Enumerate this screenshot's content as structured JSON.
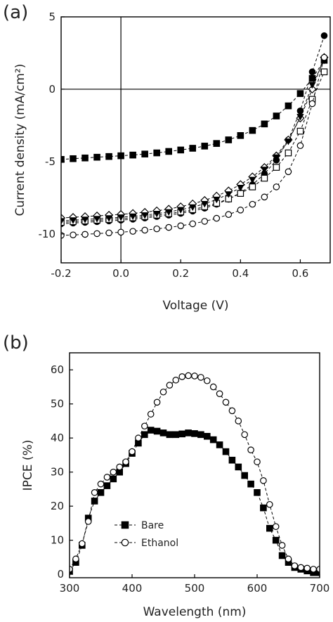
{
  "chart_data": [
    {
      "type": "line",
      "panel_label": "(a)",
      "xlabel": "Voltage (V)",
      "ylabel": "Current density (mA/cm²)",
      "xlim": [
        -0.2,
        0.7
      ],
      "ylim": [
        -12,
        5
      ],
      "xticks": [
        {
          "value": -0.2,
          "label": "-0.2"
        },
        {
          "value": 0.0,
          "label": "0.0"
        },
        {
          "value": 0.2,
          "label": "0.2"
        },
        {
          "value": 0.4,
          "label": "0.4"
        },
        {
          "value": 0.6,
          "label": "0.6"
        }
      ],
      "yticks": [
        {
          "value": 5,
          "label": "5"
        },
        {
          "value": 0,
          "label": "0"
        },
        {
          "value": -5,
          "label": "-5"
        },
        {
          "value": -10,
          "label": "-10"
        }
      ],
      "reference_lines": {
        "x": 0,
        "y": 0
      },
      "series": [
        {
          "marker": "filled-square",
          "x": [
            -0.2,
            -0.16,
            -0.12,
            -0.08,
            -0.04,
            0.0,
            0.04,
            0.08,
            0.12,
            0.16,
            0.2,
            0.24,
            0.28,
            0.32,
            0.36,
            0.4,
            0.44,
            0.48,
            0.52,
            0.56,
            0.6,
            0.64,
            0.68
          ],
          "y": [
            -4.85,
            -4.8,
            -4.75,
            -4.7,
            -4.65,
            -4.6,
            -4.55,
            -4.48,
            -4.4,
            -4.3,
            -4.2,
            -4.08,
            -3.93,
            -3.75,
            -3.5,
            -3.2,
            -2.85,
            -2.4,
            -1.85,
            -1.15,
            -0.3,
            0.75,
            2.0
          ]
        },
        {
          "marker": "filled-circle",
          "x": [
            -0.2,
            -0.16,
            -0.12,
            -0.08,
            -0.04,
            0.0,
            0.04,
            0.08,
            0.12,
            0.16,
            0.2,
            0.24,
            0.28,
            0.32,
            0.36,
            0.4,
            0.44,
            0.48,
            0.52,
            0.56,
            0.6,
            0.64,
            0.68
          ],
          "y": [
            -9.3,
            -9.25,
            -9.2,
            -9.15,
            -9.1,
            -9.05,
            -8.98,
            -8.9,
            -8.8,
            -8.7,
            -8.58,
            -8.42,
            -8.22,
            -7.95,
            -7.6,
            -7.15,
            -6.6,
            -5.85,
            -4.9,
            -3.5,
            -1.5,
            1.2,
            3.7
          ]
        },
        {
          "marker": "open-diamond",
          "x": [
            -0.2,
            -0.16,
            -0.12,
            -0.08,
            -0.04,
            0.0,
            0.04,
            0.08,
            0.12,
            0.16,
            0.2,
            0.24,
            0.28,
            0.32,
            0.36,
            0.4,
            0.44,
            0.48,
            0.52,
            0.56,
            0.6,
            0.64,
            0.68
          ],
          "y": [
            -8.9,
            -8.85,
            -8.8,
            -8.75,
            -8.7,
            -8.65,
            -8.58,
            -8.5,
            -8.4,
            -8.28,
            -8.12,
            -7.92,
            -7.68,
            -7.38,
            -7.02,
            -6.58,
            -6.05,
            -5.4,
            -4.6,
            -3.5,
            -2.0,
            0.0,
            2.2
          ]
        },
        {
          "marker": "open-square",
          "x": [
            -0.2,
            -0.16,
            -0.12,
            -0.08,
            -0.04,
            0.0,
            0.04,
            0.08,
            0.12,
            0.16,
            0.2,
            0.24,
            0.28,
            0.32,
            0.36,
            0.4,
            0.44,
            0.48,
            0.52,
            0.56,
            0.6,
            0.64,
            0.68
          ],
          "y": [
            -9.2,
            -9.15,
            -9.1,
            -9.05,
            -9.0,
            -8.95,
            -8.88,
            -8.8,
            -8.7,
            -8.6,
            -8.48,
            -8.32,
            -8.12,
            -7.88,
            -7.58,
            -7.2,
            -6.75,
            -6.15,
            -5.4,
            -4.4,
            -2.9,
            -0.7,
            1.2
          ]
        },
        {
          "marker": "filled-triangle-down",
          "x": [
            -0.2,
            -0.16,
            -0.12,
            -0.08,
            -0.04,
            0.0,
            0.04,
            0.08,
            0.12,
            0.16,
            0.2,
            0.24,
            0.28,
            0.32,
            0.36,
            0.4,
            0.44,
            0.48,
            0.52,
            0.56,
            0.6,
            0.64,
            0.68
          ],
          "y": [
            -9.1,
            -9.05,
            -9.0,
            -8.95,
            -8.9,
            -8.85,
            -8.78,
            -8.7,
            -8.6,
            -8.48,
            -8.33,
            -8.15,
            -7.92,
            -7.62,
            -7.25,
            -6.8,
            -6.25,
            -5.55,
            -4.7,
            -3.6,
            -1.9,
            0.3,
            2.0
          ]
        },
        {
          "marker": "open-circle",
          "x": [
            -0.2,
            -0.16,
            -0.12,
            -0.08,
            -0.04,
            0.0,
            0.04,
            0.08,
            0.12,
            0.16,
            0.2,
            0.24,
            0.28,
            0.32,
            0.36,
            0.4,
            0.44,
            0.48,
            0.52,
            0.56,
            0.6,
            0.64,
            0.68
          ],
          "y": [
            -10.1,
            -10.07,
            -10.03,
            -9.98,
            -9.93,
            -9.88,
            -9.82,
            -9.74,
            -9.65,
            -9.55,
            -9.44,
            -9.3,
            -9.13,
            -8.92,
            -8.66,
            -8.35,
            -7.95,
            -7.45,
            -6.75,
            -5.7,
            -3.9,
            -1.0,
            2.2
          ]
        }
      ]
    },
    {
      "type": "line",
      "panel_label": "(b)",
      "xlabel": "Wavelength (nm)",
      "ylabel": "IPCE (%)",
      "xlim": [
        300,
        700
      ],
      "ylim": [
        -1,
        65
      ],
      "xticks": [
        {
          "value": 300,
          "label": "300"
        },
        {
          "value": 400,
          "label": "400"
        },
        {
          "value": 500,
          "label": "500"
        },
        {
          "value": 600,
          "label": "600"
        },
        {
          "value": 700,
          "label": "700"
        }
      ],
      "yticks": [
        {
          "value": 0,
          "label": "0"
        },
        {
          "value": 10,
          "label": "10"
        },
        {
          "value": 20,
          "label": "20"
        },
        {
          "value": 30,
          "label": "30"
        },
        {
          "value": 40,
          "label": "40"
        },
        {
          "value": 50,
          "label": "50"
        },
        {
          "value": 60,
          "label": "60"
        }
      ],
      "legend_position": "bottom-left",
      "series": [
        {
          "name": "Bare",
          "marker": "filled-square",
          "x": [
            300,
            310,
            320,
            330,
            340,
            350,
            360,
            370,
            380,
            390,
            400,
            410,
            420,
            430,
            440,
            450,
            460,
            470,
            480,
            490,
            500,
            510,
            520,
            530,
            540,
            550,
            560,
            570,
            580,
            590,
            600,
            610,
            620,
            630,
            640,
            650,
            660,
            670,
            680,
            690,
            700
          ],
          "y": [
            1.0,
            3.5,
            8.5,
            16.5,
            21.5,
            24.0,
            26.0,
            28.0,
            30.0,
            32.5,
            35.5,
            38.5,
            41.0,
            42.3,
            42.0,
            41.5,
            41.0,
            41.0,
            41.2,
            41.5,
            41.3,
            41.0,
            40.5,
            39.5,
            38.0,
            36.0,
            33.5,
            31.5,
            29.0,
            26.5,
            24.0,
            19.5,
            13.5,
            10.0,
            5.5,
            3.5,
            2.0,
            1.5,
            1.0,
            0.5,
            0.5
          ]
        },
        {
          "name": "Ethanol",
          "marker": "open-circle",
          "x": [
            300,
            310,
            320,
            330,
            340,
            350,
            360,
            370,
            380,
            390,
            400,
            410,
            420,
            430,
            440,
            450,
            460,
            470,
            480,
            490,
            500,
            510,
            520,
            530,
            540,
            550,
            560,
            570,
            580,
            590,
            600,
            610,
            620,
            630,
            640,
            650,
            660,
            670,
            680,
            690,
            700
          ],
          "y": [
            1.5,
            4.5,
            9.0,
            15.5,
            24.0,
            26.5,
            28.5,
            30.0,
            31.5,
            33.0,
            36.0,
            40.0,
            43.5,
            47.0,
            50.5,
            53.5,
            55.5,
            57.0,
            58.0,
            58.3,
            58.2,
            57.8,
            56.8,
            55.0,
            53.0,
            50.5,
            48.0,
            45.0,
            41.0,
            36.5,
            33.0,
            27.5,
            20.5,
            14.0,
            8.5,
            4.5,
            2.5,
            2.0,
            1.8,
            1.5,
            1.5
          ]
        }
      ]
    }
  ]
}
